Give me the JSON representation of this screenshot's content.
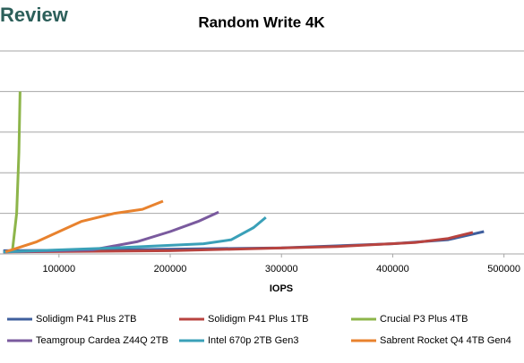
{
  "brand": "Review",
  "chart_data": {
    "type": "line",
    "title": "Random Write 4K",
    "x_label": "IOPS",
    "xlim": [
      47000,
      518000
    ],
    "xticks": [
      100000,
      200000,
      300000,
      400000,
      500000
    ],
    "ylim": [
      0,
      5
    ],
    "ygrid": [
      1,
      2,
      3,
      4,
      5
    ],
    "grid": true,
    "legend": "bottom",
    "series": [
      {
        "name": "Solidigm P41 Plus 2TB",
        "color": "#3f5f9e",
        "x": [
          50000,
          150000,
          300000,
          400000,
          450000,
          482000
        ],
        "values": [
          0.08,
          0.1,
          0.15,
          0.25,
          0.35,
          0.55
        ]
      },
      {
        "name": "Solidigm P41 Plus 1TB",
        "color": "#b8433f",
        "x": [
          50000,
          200000,
          350000,
          420000,
          450000,
          472000
        ],
        "values": [
          0.05,
          0.08,
          0.18,
          0.28,
          0.38,
          0.53
        ]
      },
      {
        "name": "Crucial P3 Plus 4TB",
        "color": "#8db54a",
        "x": [
          58000,
          62000,
          64000,
          65000
        ],
        "values": [
          0.05,
          1.0,
          2.5,
          4.0
        ]
      },
      {
        "name": "Teamgroup Cardea Z44Q 2TB",
        "color": "#7a5a9e",
        "x": [
          50000,
          130000,
          170000,
          200000,
          225000,
          243500
        ],
        "values": [
          0.05,
          0.1,
          0.3,
          0.55,
          0.8,
          1.03
        ]
      },
      {
        "name": "Intel 670p 2TB Gen3",
        "color": "#3aa0b8",
        "x": [
          50000,
          150000,
          230000,
          255000,
          275000,
          286000
        ],
        "values": [
          0.05,
          0.15,
          0.25,
          0.35,
          0.65,
          0.9
        ]
      },
      {
        "name": "Sabrent Rocket Q4 4TB Gen4",
        "color": "#e8822e",
        "x": [
          52000,
          80000,
          120000,
          150000,
          175000,
          193500
        ],
        "values": [
          0.05,
          0.3,
          0.8,
          1.0,
          1.1,
          1.3
        ]
      }
    ]
  }
}
